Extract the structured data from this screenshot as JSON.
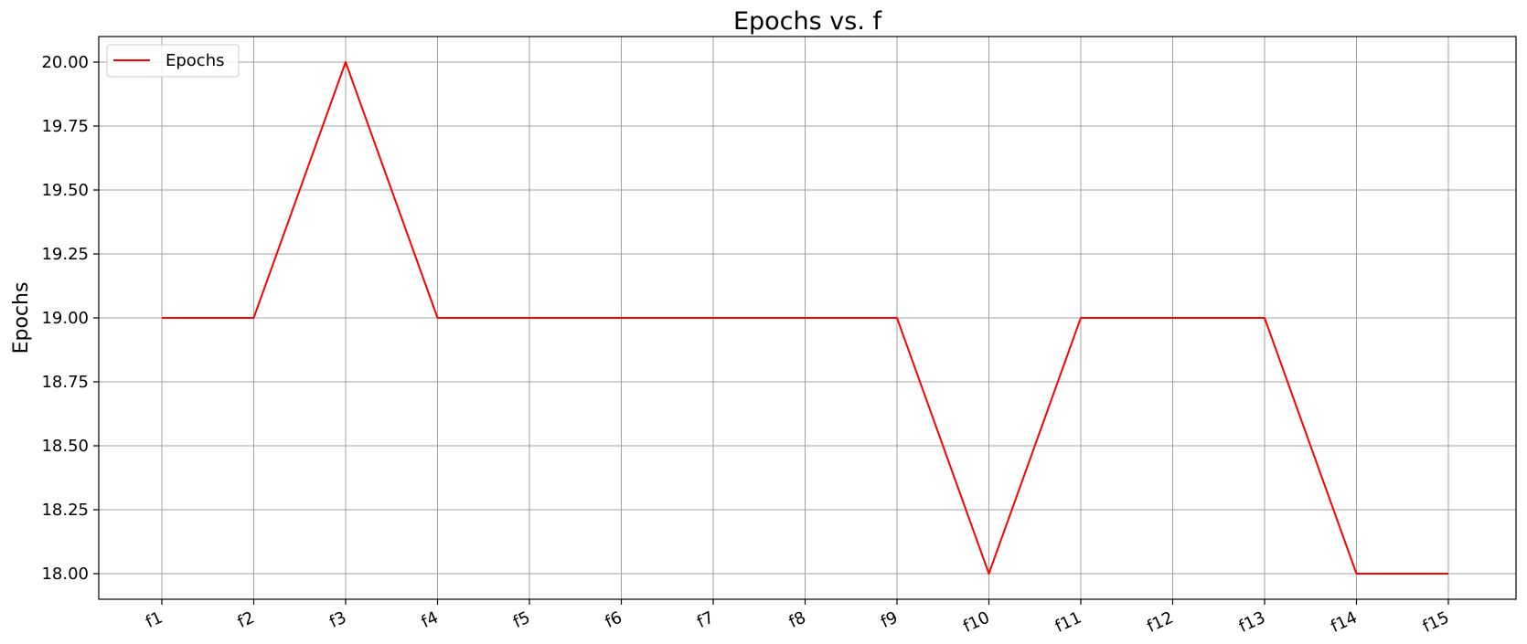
{
  "chart_data": {
    "type": "line",
    "title": "Epochs vs. f",
    "xlabel": "",
    "ylabel": "Epochs",
    "categories": [
      "f1",
      "f2",
      "f3",
      "f4",
      "f5",
      "f6",
      "f7",
      "f8",
      "f9",
      "f10",
      "f11",
      "f12",
      "f13",
      "f14",
      "f15"
    ],
    "series": [
      {
        "name": "Epochs",
        "color": "#ff0000",
        "values": [
          19,
          19,
          20,
          19,
          19,
          19,
          19,
          19,
          19,
          18,
          19,
          19,
          19,
          18,
          18
        ]
      }
    ],
    "ylim": [
      17.9,
      20.1
    ],
    "yticks": [
      "18.00",
      "18.25",
      "18.50",
      "18.75",
      "19.00",
      "19.25",
      "19.50",
      "19.75",
      "20.00"
    ],
    "grid": true,
    "legend_position": "upper left",
    "xtick_rotation": "slanted"
  }
}
